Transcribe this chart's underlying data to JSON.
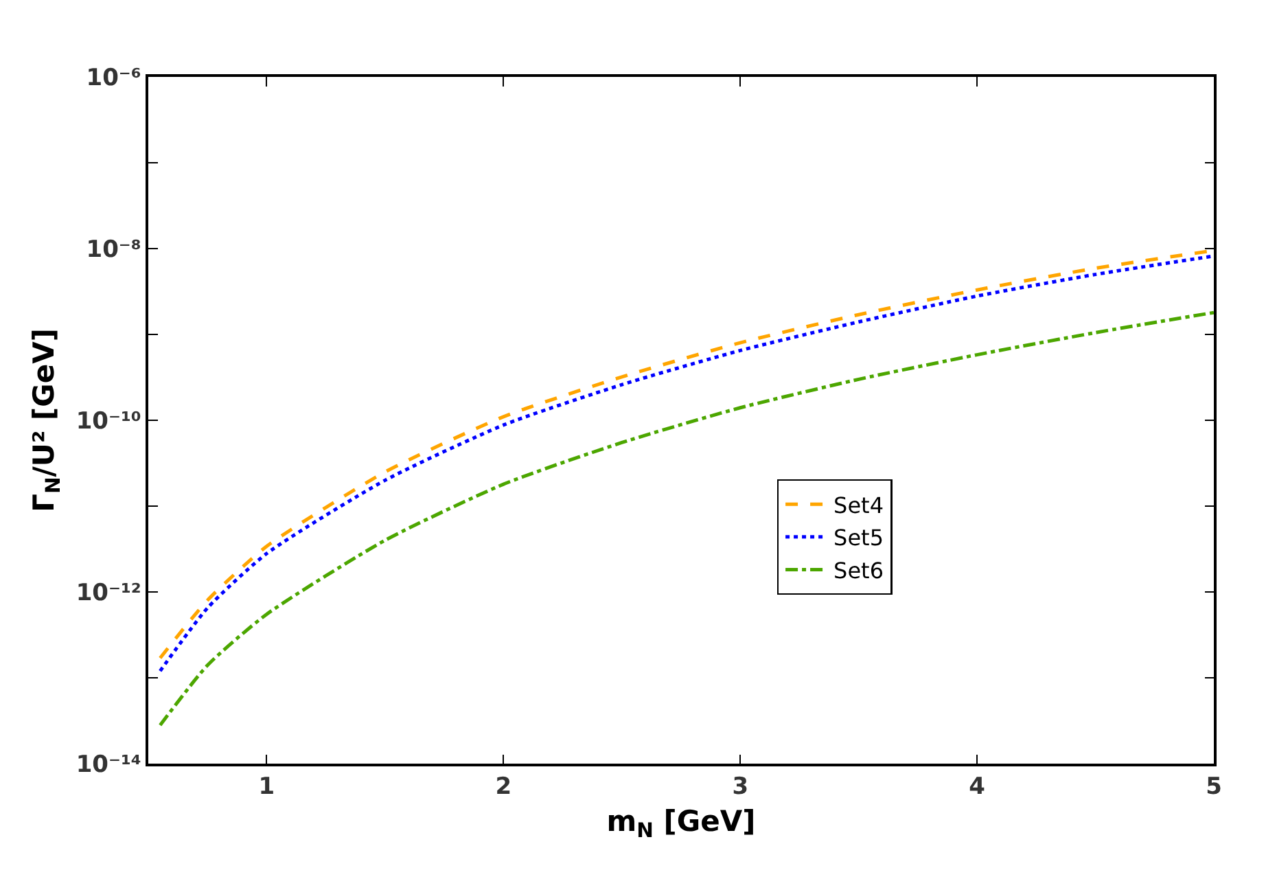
{
  "chart_data": {
    "type": "line",
    "xlabel": "m$_{N}$ [GeV]",
    "ylabel": "Γ$_{N}$/U² [GeV]",
    "x": [
      0.55,
      0.75,
      1,
      1.5,
      2,
      2.5,
      3,
      3.5,
      4,
      4.5,
      5
    ],
    "series": [
      {
        "name": "Set4",
        "color": "#ffa500",
        "line_style": "dashed",
        "values": [
          1.7e-13,
          8e-13,
          3.4e-12,
          2.5e-11,
          1.1e-10,
          3.2e-10,
          8e-10,
          1.7e-09,
          3.3e-09,
          5.9e-09,
          9.5e-09
        ]
      },
      {
        "name": "Set5",
        "color": "#0000ff",
        "line_style": "dotted",
        "values": [
          1.2e-13,
          6.5e-13,
          2.8e-12,
          2e-11,
          8.8e-11,
          2.6e-10,
          6.5e-10,
          1.4e-09,
          2.8e-09,
          5e-09,
          8.2e-09
        ]
      },
      {
        "name": "Set6",
        "color": "#4ca600",
        "line_style": "dashdot",
        "values": [
          2.8e-14,
          1.4e-13,
          5.5e-13,
          4e-12,
          1.8e-11,
          5.5e-11,
          1.4e-10,
          3e-10,
          5.8e-10,
          1.05e-09,
          1.8e-09
        ]
      }
    ],
    "xlim": [
      0.5,
      5
    ],
    "xticks": [
      1,
      2,
      3,
      4,
      5
    ],
    "ylim": [
      1e-14,
      1e-06
    ],
    "yticks": [
      {
        "value": 1e-14,
        "label": "10⁻¹⁴"
      },
      {
        "value": 1e-13,
        "label": null
      },
      {
        "value": 1e-12,
        "label": "10⁻¹²"
      },
      {
        "value": 1e-11,
        "label": null
      },
      {
        "value": 1e-10,
        "label": "10⁻¹⁰"
      },
      {
        "value": 1e-09,
        "label": null
      },
      {
        "value": 1e-08,
        "label": "10⁻⁸"
      },
      {
        "value": 1e-07,
        "label": null
      },
      {
        "value": 1e-06,
        "label": "10⁻⁶"
      }
    ],
    "log": "y",
    "grid": false,
    "legend": "right",
    "marker": "none"
  }
}
